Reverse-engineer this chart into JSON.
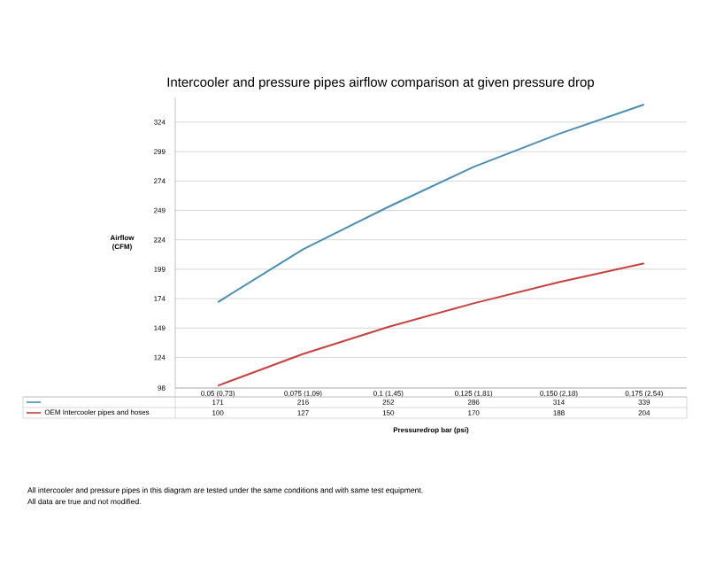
{
  "chart_data": {
    "type": "line",
    "title": "Intercooler and pressure pipes airflow comparison at given pressure drop",
    "xlabel": "Pressuredrop bar (psi)",
    "ylabel": "Airflow (CFM)",
    "categories": [
      "0,05 (0,73)",
      "0,075 (1,09)",
      "0,1 (1,45)",
      "0,125 (1,81)",
      "0,150 (2,18)",
      "0,175 (2,54)"
    ],
    "series": [
      {
        "color": "#4a8fb3",
        "values": [
          171,
          216,
          252,
          286,
          314,
          339
        ]
      },
      {
        "name": "OEM Intercooler pipes and hoses",
        "color": "#c8413f",
        "values": [
          100,
          127,
          150,
          170,
          188,
          204
        ]
      }
    ],
    "ylim": [
      98,
      345
    ],
    "yticks": [
      98,
      124,
      149,
      174,
      199,
      224,
      249,
      274,
      299,
      324
    ],
    "grid": "y",
    "data_labels": true,
    "legend": "bottom",
    "marker": "none",
    "line_style": "solid",
    "annotations": [
      "All intercooler and pressure pipes in this diagram are tested under the same conditions and with same test equipment.",
      "All data are true and not modified."
    ]
  }
}
